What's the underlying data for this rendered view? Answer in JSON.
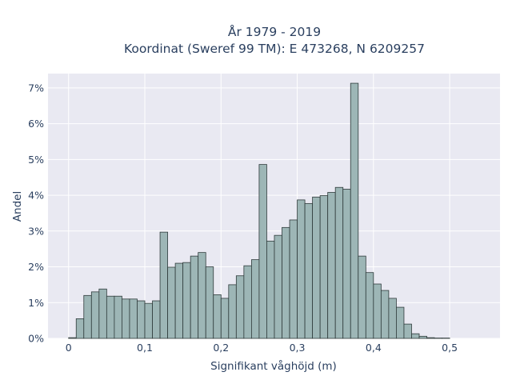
{
  "chart_data": {
    "type": "bar",
    "title_line1": "År 1979 - 2019",
    "title_line2": "Koordinat (Sweref 99 TM): E 473268, N 6209257",
    "xlabel": "Signifikant våghöjd (m)",
    "ylabel": "Andel",
    "xlim": [
      -0.027,
      0.566
    ],
    "ylim": [
      0,
      7.4
    ],
    "bin_start": 0.0,
    "bin_width": 0.01,
    "x_ticks": [
      {
        "value": 0,
        "label": "0"
      },
      {
        "value": 0.1,
        "label": "0,1"
      },
      {
        "value": 0.2,
        "label": "0,2"
      },
      {
        "value": 0.3,
        "label": "0,3"
      },
      {
        "value": 0.4,
        "label": "0,4"
      },
      {
        "value": 0.5,
        "label": "0,5"
      }
    ],
    "y_ticks": [
      {
        "value": 0,
        "label": "0%"
      },
      {
        "value": 1,
        "label": "1%"
      },
      {
        "value": 2,
        "label": "2%"
      },
      {
        "value": 3,
        "label": "3%"
      },
      {
        "value": 4,
        "label": "4%"
      },
      {
        "value": 5,
        "label": "5%"
      },
      {
        "value": 6,
        "label": "6%"
      },
      {
        "value": 7,
        "label": "7%"
      }
    ],
    "values": [
      0.02,
      0.55,
      1.2,
      1.3,
      1.38,
      1.18,
      1.18,
      1.1,
      1.1,
      1.05,
      0.98,
      1.05,
      2.97,
      1.99,
      2.1,
      2.12,
      2.3,
      2.4,
      2.0,
      1.22,
      1.12,
      1.5,
      1.75,
      2.03,
      2.2,
      4.86,
      2.72,
      2.88,
      3.1,
      3.31,
      3.87,
      3.77,
      3.95,
      3.99,
      4.08,
      4.22,
      4.17,
      7.13,
      2.3,
      1.84,
      1.52,
      1.34,
      1.12,
      0.87,
      0.4,
      0.13,
      0.06,
      0.02,
      0.01,
      0.01
    ],
    "colors": {
      "bar_fill": "#9db6b6",
      "bar_edge": "#2f3b3b",
      "plot_bg": "#e9e9f2",
      "grid": "#ffffff",
      "text": "#2a3f5f"
    },
    "grid": true
  }
}
